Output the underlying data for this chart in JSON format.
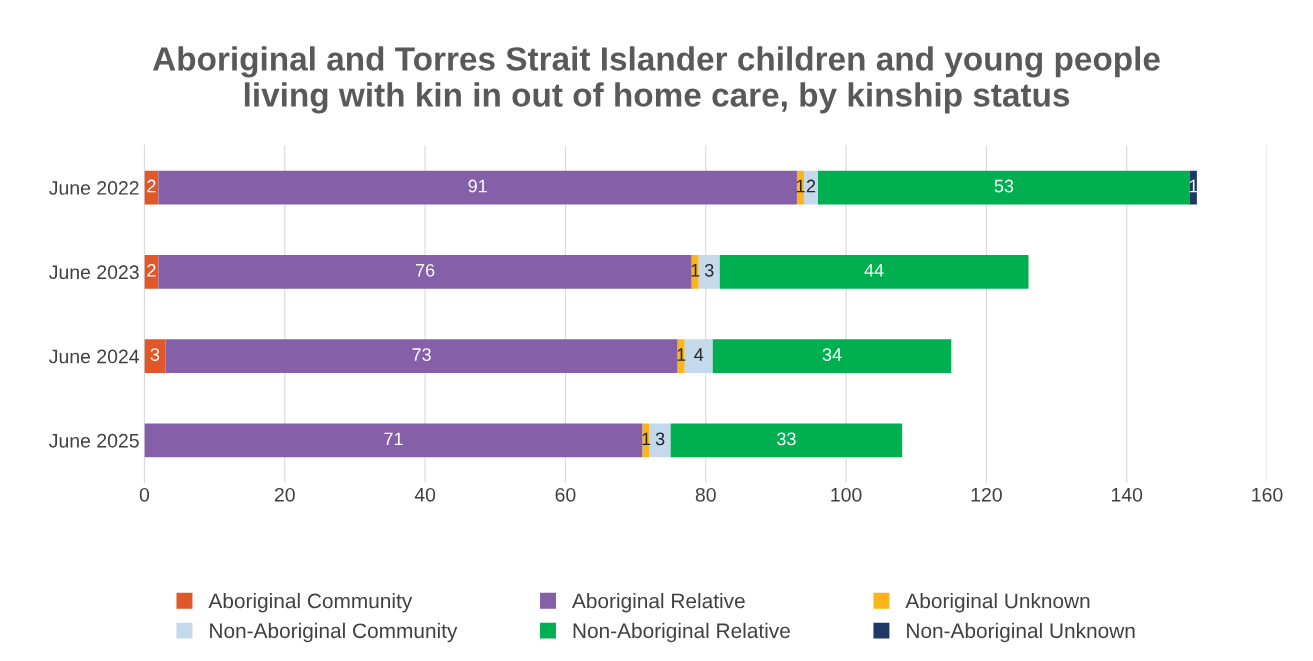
{
  "chart_data": {
    "type": "bar",
    "orientation": "horizontal",
    "stacked": true,
    "title": "Aboriginal and Torres Strait Islander children and young people\nliving with kin in out of home care, by kinship status",
    "categories": [
      "June 2022",
      "June 2023",
      "June 2024",
      "June 2025"
    ],
    "series": [
      {
        "name": "Aboriginal Community",
        "color": "#e0582a",
        "values": [
          2,
          2,
          3,
          0
        ],
        "value_labels": [
          "2",
          "2",
          "3",
          null
        ]
      },
      {
        "name": "Aboriginal Relative",
        "color": "#8560a8",
        "values": [
          91,
          76,
          73,
          71
        ],
        "value_labels": [
          "91",
          "76",
          "73",
          "71"
        ]
      },
      {
        "name": "Aboriginal Unknown",
        "color": "#f9b51b",
        "values": [
          1,
          1,
          1,
          1
        ],
        "value_labels": [
          "1",
          "1",
          "1",
          "1"
        ]
      },
      {
        "name": "Non-Aboriginal Community",
        "color": "#c5d9ed",
        "values": [
          2,
          3,
          4,
          3
        ],
        "value_labels": [
          "2",
          "3",
          "4",
          "3"
        ]
      },
      {
        "name": "Non-Aboriginal Relative",
        "color": "#00b050",
        "values": [
          53,
          44,
          34,
          33
        ],
        "value_labels": [
          "53",
          "44",
          "34",
          "33"
        ]
      },
      {
        "name": "Non-Aboriginal Unknown",
        "color": "#1f3864",
        "values": [
          1,
          0,
          0,
          0
        ],
        "value_labels": [
          "1",
          null,
          null,
          null
        ]
      }
    ],
    "xlim": [
      0,
      160
    ],
    "xticks": [
      0,
      20,
      40,
      60,
      80,
      100,
      120,
      140,
      160
    ],
    "grid": "x",
    "legend": "bottom"
  }
}
